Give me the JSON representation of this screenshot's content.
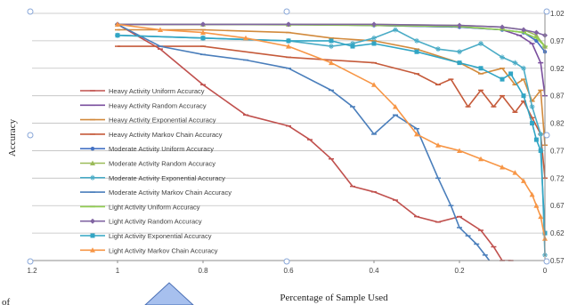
{
  "chart_data": {
    "type": "line",
    "title": "",
    "xlabel": "Percentage of Sample Used",
    "ylabel": "Accuracy",
    "xlim": [
      1.2,
      0
    ],
    "ylim": [
      0.57,
      1.02
    ],
    "x_reversed": true,
    "x_ticks": [
      "1.2",
      "1",
      "0.8",
      "0.6",
      "0.4",
      "0.2",
      "0"
    ],
    "y_ticks": [
      "0.57",
      "0.62",
      "0.67",
      "0.72",
      "0.77",
      "0.82",
      "0.87",
      "0.92",
      "0.97",
      "1.02"
    ],
    "grid": "horizontal",
    "legend_position": "left",
    "stray_text": "of",
    "series": [
      {
        "name": "Heavy Activity Uniform Accuracy",
        "color": "#c0504d",
        "marker": "dash",
        "x": [
          1,
          0.9,
          0.8,
          0.7,
          0.6,
          0.55,
          0.5,
          0.45,
          0.4,
          0.35,
          0.3,
          0.25,
          0.2,
          0.15,
          0.12,
          0.1,
          0.08
        ],
        "y": [
          1.0,
          0.955,
          0.89,
          0.835,
          0.815,
          0.79,
          0.755,
          0.705,
          0.695,
          0.68,
          0.65,
          0.64,
          0.65,
          0.625,
          0.595,
          0.57,
          0.57
        ]
      },
      {
        "name": "Heavy Activity Random Accuracy",
        "color": "#7a4e9e",
        "marker": "dash",
        "x": [
          1,
          0.8,
          0.6,
          0.4,
          0.2,
          0.1,
          0.06,
          0.03,
          0.01,
          0
        ],
        "y": [
          1.0,
          1.0,
          1.0,
          0.998,
          0.995,
          0.99,
          0.98,
          0.965,
          0.93,
          0.87
        ]
      },
      {
        "name": "Heavy Activity Exponential Accuracy",
        "color": "#d28a3c",
        "marker": "dash",
        "x": [
          1,
          0.8,
          0.6,
          0.5,
          0.4,
          0.3,
          0.2,
          0.15,
          0.1,
          0.07,
          0.05,
          0.03,
          0.01,
          0
        ],
        "y": [
          0.99,
          0.99,
          0.985,
          0.975,
          0.97,
          0.955,
          0.93,
          0.91,
          0.92,
          0.89,
          0.9,
          0.86,
          0.88,
          0.78
        ]
      },
      {
        "name": "Heavy Activity Markov Chain Accuracy",
        "color": "#c55a3a",
        "marker": "dash",
        "x": [
          1,
          0.8,
          0.6,
          0.4,
          0.3,
          0.25,
          0.22,
          0.18,
          0.15,
          0.12,
          0.1,
          0.07,
          0.05,
          0.03,
          0.01,
          0
        ],
        "y": [
          0.96,
          0.96,
          0.94,
          0.93,
          0.91,
          0.89,
          0.9,
          0.85,
          0.88,
          0.85,
          0.87,
          0.84,
          0.86,
          0.83,
          0.8,
          0.72
        ]
      },
      {
        "name": "Moderate Activity Uniform Accuracy",
        "color": "#4472c4",
        "marker": "dot",
        "x": [
          1,
          0.8,
          0.6,
          0.4,
          0.2,
          0.1,
          0.05,
          0.02,
          0
        ],
        "y": [
          1.0,
          1.0,
          1.0,
          0.998,
          0.995,
          0.99,
          0.985,
          0.97,
          0.95
        ]
      },
      {
        "name": "Moderate Activity Random Accuracy",
        "color": "#9bbb59",
        "marker": "triangle",
        "x": [
          1,
          0.8,
          0.6,
          0.4,
          0.2,
          0.1,
          0.05,
          0.02,
          0
        ],
        "y": [
          1.0,
          1.0,
          1.0,
          1.0,
          0.998,
          0.995,
          0.99,
          0.98,
          0.96
        ]
      },
      {
        "name": "Moderate Activity Exponential Accuracy",
        "color": "#4bacc6",
        "marker": "star",
        "x": [
          1,
          0.8,
          0.6,
          0.5,
          0.45,
          0.4,
          0.35,
          0.3,
          0.25,
          0.2,
          0.15,
          0.1,
          0.07,
          0.05,
          0.03,
          0.01,
          0
        ],
        "y": [
          0.98,
          0.975,
          0.97,
          0.96,
          0.965,
          0.975,
          0.99,
          0.97,
          0.955,
          0.95,
          0.965,
          0.94,
          0.93,
          0.92,
          0.85,
          0.8,
          0.58
        ]
      },
      {
        "name": "Moderate Activity Markov Chain Accuracy",
        "color": "#4a7ebb",
        "marker": "dash",
        "x": [
          1,
          0.9,
          0.8,
          0.7,
          0.6,
          0.5,
          0.45,
          0.4,
          0.35,
          0.3,
          0.25,
          0.22,
          0.2,
          0.18,
          0.16,
          0.14,
          0.12,
          0.1
        ],
        "y": [
          1.0,
          0.96,
          0.945,
          0.935,
          0.92,
          0.88,
          0.85,
          0.8,
          0.835,
          0.81,
          0.72,
          0.67,
          0.63,
          0.615,
          0.6,
          0.58,
          0.56,
          0.55
        ]
      },
      {
        "name": "Light Activity Uniform Accuracy",
        "color": "#92d050",
        "marker": "dash",
        "x": [
          1,
          0.8,
          0.6,
          0.4,
          0.2,
          0.1,
          0.05,
          0.02,
          0
        ],
        "y": [
          1.0,
          1.0,
          0.999,
          0.998,
          0.996,
          0.99,
          0.985,
          0.975,
          0.96
        ]
      },
      {
        "name": "Light Activity Random Accuracy",
        "color": "#8064a2",
        "marker": "diamond",
        "x": [
          1,
          0.8,
          0.6,
          0.4,
          0.2,
          0.1,
          0.05,
          0.02,
          0
        ],
        "y": [
          1.0,
          1.0,
          1.0,
          1.0,
          0.998,
          0.995,
          0.99,
          0.985,
          0.98
        ]
      },
      {
        "name": "Light Activity Exponential Accuracy",
        "color": "#31a5c4",
        "marker": "square",
        "x": [
          1,
          0.8,
          0.6,
          0.5,
          0.45,
          0.4,
          0.3,
          0.2,
          0.15,
          0.1,
          0.08,
          0.05,
          0.03,
          0.02,
          0.01,
          0
        ],
        "y": [
          0.98,
          0.975,
          0.97,
          0.97,
          0.96,
          0.965,
          0.95,
          0.93,
          0.92,
          0.9,
          0.91,
          0.87,
          0.82,
          0.79,
          0.77,
          0.62
        ]
      },
      {
        "name": "Light Activity Markov Chain Accuracy",
        "color": "#f79646",
        "marker": "triangle",
        "x": [
          1,
          0.9,
          0.8,
          0.7,
          0.6,
          0.5,
          0.4,
          0.35,
          0.3,
          0.25,
          0.2,
          0.15,
          0.1,
          0.07,
          0.05,
          0.03,
          0.02,
          0.01,
          0
        ],
        "y": [
          1.0,
          0.99,
          0.985,
          0.975,
          0.96,
          0.93,
          0.89,
          0.85,
          0.8,
          0.78,
          0.77,
          0.755,
          0.74,
          0.73,
          0.715,
          0.69,
          0.67,
          0.65,
          0.61
        ]
      }
    ]
  }
}
